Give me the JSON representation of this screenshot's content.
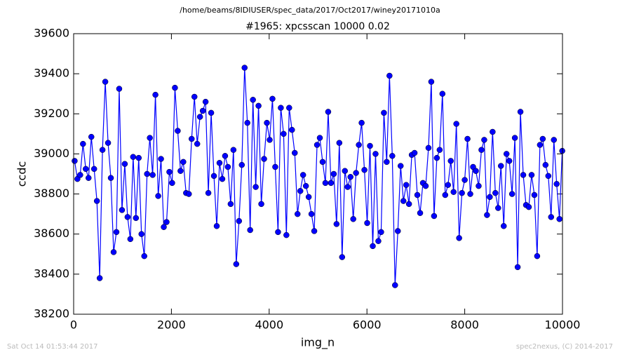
{
  "chart_data": {
    "type": "line",
    "suptitle": "/home/beams/8IDIUSER/spec_data/2017/Oct2017/winey20171010a",
    "title": "#1965: xpcsscan 10000 0.02",
    "xlabel": "img_n",
    "ylabel": "ccdc",
    "timestamp": "Sat Oct 14 01:53:44 2017",
    "credit": "spec2nexus, (C) 2014-2017",
    "xlim": [
      0,
      10000
    ],
    "xticks": [
      0,
      2000,
      4000,
      6000,
      8000,
      10000
    ],
    "ylim": [
      38200,
      39600
    ],
    "yticks": [
      38200,
      38400,
      38600,
      38800,
      39000,
      39200,
      39400,
      39600
    ],
    "x": [
      20,
      77,
      134,
      191,
      248,
      305,
      362,
      419,
      476,
      533,
      590,
      647,
      704,
      761,
      818,
      875,
      932,
      989,
      1046,
      1103,
      1160,
      1217,
      1274,
      1331,
      1388,
      1445,
      1502,
      1559,
      1616,
      1673,
      1730,
      1787,
      1844,
      1901,
      1958,
      2015,
      2072,
      2129,
      2186,
      2243,
      2300,
      2357,
      2414,
      2471,
      2528,
      2585,
      2642,
      2699,
      2756,
      2813,
      2870,
      2927,
      2984,
      3041,
      3098,
      3155,
      3212,
      3269,
      3326,
      3383,
      3440,
      3497,
      3554,
      3611,
      3668,
      3725,
      3782,
      3839,
      3896,
      3953,
      4010,
      4067,
      4124,
      4181,
      4238,
      4295,
      4352,
      4409,
      4466,
      4523,
      4580,
      4637,
      4694,
      4751,
      4808,
      4865,
      4922,
      4979,
      5036,
      5093,
      5150,
      5207,
      5264,
      5321,
      5378,
      5435,
      5492,
      5549,
      5606,
      5663,
      5720,
      5777,
      5834,
      5891,
      5948,
      6005,
      6062,
      6119,
      6176,
      6233,
      6290,
      6347,
      6404,
      6461,
      6518,
      6575,
      6632,
      6689,
      6746,
      6803,
      6860,
      6917,
      6974,
      7031,
      7088,
      7145,
      7202,
      7259,
      7316,
      7373,
      7430,
      7487,
      7544,
      7601,
      7658,
      7715,
      7772,
      7829,
      7886,
      7943,
      8000,
      8057,
      8114,
      8171,
      8228,
      8285,
      8342,
      8399,
      8456,
      8513,
      8570,
      8627,
      8684,
      8741,
      8798,
      8855,
      8912,
      8969,
      9026,
      9083,
      9140,
      9197,
      9254,
      9311,
      9368,
      9425,
      9482,
      9539,
      9596,
      9653,
      9710,
      9767,
      9824,
      9881,
      9938,
      9995
    ],
    "series": [
      {
        "color": "#0000ff",
        "values": [
          38965,
          38875,
          38895,
          39050,
          38925,
          38880,
          39085,
          38925,
          38765,
          38380,
          39020,
          39360,
          39055,
          38880,
          38510,
          38610,
          39325,
          38720,
          38950,
          38685,
          38575,
          38985,
          38680,
          38980,
          38600,
          38490,
          38900,
          39080,
          38895,
          39295,
          38790,
          38975,
          38635,
          38660,
          38910,
          38855,
          39330,
          39115,
          38915,
          38960,
          38805,
          38800,
          39075,
          39285,
          39050,
          39185,
          39215,
          39260,
          38805,
          39205,
          38890,
          38640,
          38955,
          38875,
          38990,
          38935,
          38750,
          39020,
          38450,
          38665,
          38945,
          39430,
          39155,
          38620,
          39270,
          38835,
          39240,
          38750,
          38975,
          39155,
          39070,
          39275,
          38935,
          38610,
          39230,
          39100,
          38595,
          39230,
          39120,
          39005,
          38700,
          38815,
          38895,
          38840,
          38785,
          38700,
          38615,
          39045,
          39080,
          38960,
          38855,
          39210,
          38855,
          38900,
          38650,
          39055,
          38485,
          38915,
          38835,
          38885,
          38675,
          38905,
          39045,
          39155,
          38920,
          38655,
          39040,
          38540,
          39000,
          38565,
          38610,
          39205,
          38960,
          39390,
          38990,
          38345,
          38615,
          38940,
          38765,
          38845,
          38750,
          38995,
          39005,
          38795,
          38705,
          38855,
          38840,
          39030,
          39360,
          38690,
          38980,
          39020,
          39300,
          38795,
          38845,
          38965,
          38810,
          39150,
          38580,
          38805,
          38870,
          39075,
          38800,
          38935,
          38915,
          38840,
          39020,
          39070,
          38695,
          38785,
          39110,
          38805,
          38730,
          38940,
          38640,
          39000,
          38965,
          38800,
          39080,
          38435,
          39210,
          38895,
          38745,
          38735,
          38895,
          38795,
          38490,
          39045,
          39075,
          38945,
          38890,
          38685,
          39070,
          38850,
          38675,
          39015
        ]
      }
    ]
  }
}
